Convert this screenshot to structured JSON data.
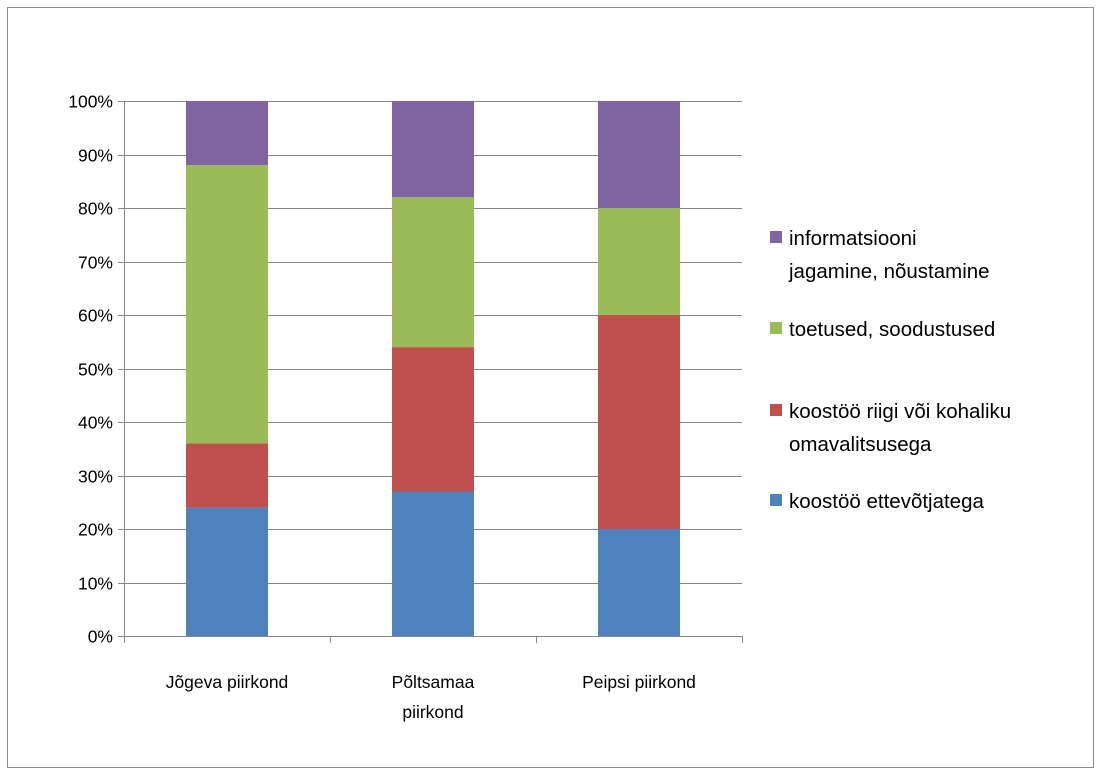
{
  "chart_data": {
    "type": "bar",
    "stacked": true,
    "normalized": true,
    "title": "",
    "xlabel": "",
    "ylabel": "",
    "categories": [
      [
        "Jõgeva piirkond"
      ],
      [
        "Põltsamaa",
        "piirkond"
      ],
      [
        "Peipsi piirkond"
      ]
    ],
    "ylim": [
      0,
      100
    ],
    "yticks": [
      "0%",
      "10%",
      "20%",
      "30%",
      "40%",
      "50%",
      "60%",
      "70%",
      "80%",
      "90%",
      "100%"
    ],
    "grid": true,
    "legend_position": "right",
    "series": [
      {
        "name": [
          "koostöö ettevõtjatega"
        ],
        "color": "#4f81bd",
        "values": [
          24,
          27,
          20
        ]
      },
      {
        "name": [
          "koostöö riigi või kohaliku",
          "omavalitsusega"
        ],
        "color": "#c0504d",
        "values": [
          12,
          27,
          40
        ]
      },
      {
        "name": [
          "toetused, soodustused"
        ],
        "color": "#9bbb59",
        "values": [
          52,
          28,
          20
        ]
      },
      {
        "name": [
          "informatsiooni",
          "jagamine, nõustamine"
        ],
        "color": "#8064a2",
        "values": [
          12,
          18,
          20
        ]
      }
    ],
    "legend_order": [
      3,
      2,
      1,
      0
    ]
  }
}
